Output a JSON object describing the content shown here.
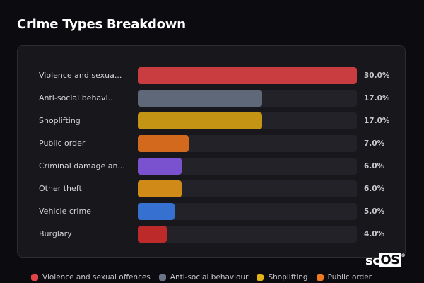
{
  "header": {
    "title": "Crime Types Breakdown"
  },
  "rows": [
    {
      "label": "Violence and sexua...",
      "pct": "30.0%",
      "value": 30.0,
      "color": "#c93d40"
    },
    {
      "label": "Anti-social behavi...",
      "pct": "17.0%",
      "value": 17.0,
      "color": "#5e6878"
    },
    {
      "label": "Shoplifting",
      "pct": "17.0%",
      "value": 17.0,
      "color": "#c49414"
    },
    {
      "label": "Public order",
      "pct": "7.0%",
      "value": 7.0,
      "color": "#d2691c"
    },
    {
      "label": "Criminal damage an...",
      "pct": "6.0%",
      "value": 6.0,
      "color": "#7a52d0"
    },
    {
      "label": "Other theft",
      "pct": "6.0%",
      "value": 6.0,
      "color": "#d08a18"
    },
    {
      "label": "Vehicle crime",
      "pct": "5.0%",
      "value": 5.0,
      "color": "#3670d0"
    },
    {
      "label": "Burglary",
      "pct": "4.0%",
      "value": 4.0,
      "color": "#bc2a2a"
    }
  ],
  "legend": [
    {
      "label": "Violence and sexual offences",
      "color": "#e04448"
    },
    {
      "label": "Anti-social behaviour",
      "color": "#6a7488"
    },
    {
      "label": "Shoplifting",
      "color": "#e2b418"
    },
    {
      "label": "Public order",
      "color": "#f07a22"
    }
  ],
  "logo": {
    "prefix": "sc",
    "boxed": "OS",
    "reg": "®"
  },
  "chart_data": {
    "type": "bar",
    "orientation": "horizontal",
    "title": "Crime Types Breakdown",
    "categories": [
      "Violence and sexual offences",
      "Anti-social behaviour",
      "Shoplifting",
      "Public order",
      "Criminal damage and arson",
      "Other theft",
      "Vehicle crime",
      "Burglary"
    ],
    "category_labels_displayed": [
      "Violence and sexua...",
      "Anti-social behavi...",
      "Shoplifting",
      "Public order",
      "Criminal damage an...",
      "Other theft",
      "Vehicle crime",
      "Burglary"
    ],
    "values": [
      30.0,
      17.0,
      17.0,
      7.0,
      6.0,
      6.0,
      5.0,
      4.0
    ],
    "value_labels": [
      "30.0%",
      "17.0%",
      "17.0%",
      "7.0%",
      "6.0%",
      "6.0%",
      "5.0%",
      "4.0%"
    ],
    "unit": "%",
    "colors": [
      "#c93d40",
      "#5e6878",
      "#c49414",
      "#d2691c",
      "#7a52d0",
      "#d08a18",
      "#3670d0",
      "#bc2a2a"
    ],
    "xlabel": "",
    "ylabel": "",
    "xlim": [
      0,
      30
    ],
    "grid": false,
    "legend": {
      "position": "bottom",
      "entries": [
        "Violence and sexual offences",
        "Anti-social behaviour",
        "Shoplifting",
        "Public order"
      ]
    }
  }
}
